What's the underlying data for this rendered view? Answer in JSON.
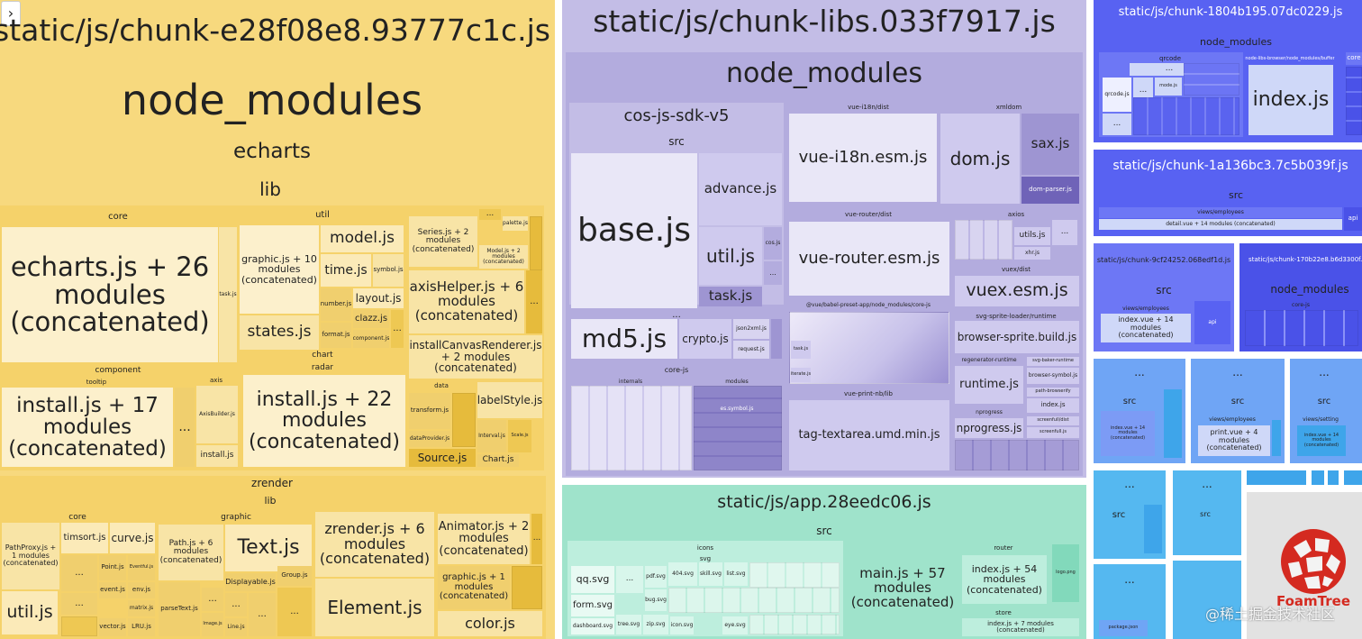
{
  "toggle": {
    "glyph": "›"
  },
  "chunk_e28": {
    "title": "static/js/chunk-e28f08e8.93777c1c.js",
    "node_modules": "node_modules",
    "echarts": "echarts",
    "lib": "lib",
    "core": "core",
    "util": "util",
    "echarts_js": "echarts.js + 26\nmodules\n(concatenated)",
    "graphic_js": "graphic.js + 10\nmodules\n(concatenated)",
    "model_js": "model.js",
    "time_js": "time.js",
    "symbol_js": "symbol.js",
    "layout_js": "layout.js",
    "number_js": "number.js",
    "clazz_js": "clazz.js",
    "states_js": "states.js",
    "format_js": "format.js",
    "component_js": "component.js",
    "task_js": "task.js",
    "series_js": "Series.js + 2\nmodules\n(concatenated)",
    "palette_js": "palette.js",
    "model2_js": "Model.js + 2\nmodules\n(concatenated)",
    "axishelper_js": "axisHelper.js + 6\nmodules\n(concatenated)",
    "installcanvas_js": "installCanvasRenderer.js\n+ 2 modules\n(concatenated)",
    "component": "component",
    "tooltip": "tooltip",
    "axis": "axis",
    "chart": "chart",
    "radar": "radar",
    "data": "data",
    "install17": "install.js + 17\nmodules\n(concatenated)",
    "axisbuilder_js": "AxisBuilder.js",
    "install_js": "install.js",
    "install22": "install.js + 22\nmodules\n(concatenated)",
    "transform_js": "transform.js",
    "dataprovider_js": "dataProvider.js",
    "labelstyle_js": "labelStyle.js",
    "interval_js": "Interval.js",
    "scale_js": "Scale.js",
    "source_js": "Source.js",
    "chart_js": "Chart.js",
    "zrender": "zrender",
    "zr_lib": "lib",
    "zr_core": "core",
    "zr_graphic": "graphic",
    "pathproxy_js": "PathProxy.js +\n1 modules\n(concatenated)",
    "timsort_js": "timsort.js",
    "curve_js": "curve.js",
    "point_js": "Point.js",
    "eventful_js": "Eventful.js",
    "event_js": "event.js",
    "env_js": "env.js",
    "matrix_js": "matrix.js",
    "vector_js": "vector.js",
    "lru_js": "LRU.js",
    "util_js": "util.js",
    "path_js": "Path.js + 6\nmodules\n(concatenated)",
    "text_js": "Text.js",
    "displayable_js": "Displayable.js",
    "group_js": "Group.js",
    "parsetext_js": "parseText.js",
    "image_js": "Image.js",
    "line_js": "Line.js",
    "zrender_js": "zrender.js + 6\nmodules\n(concatenated)",
    "element_js": "Element.js",
    "animator_js": "Animator.js + 2\nmodules\n(concatenated)",
    "graphic1_js": "graphic.js + 1\nmodules\n(concatenated)",
    "color_js": "color.js",
    "ellipsis": "..."
  },
  "chunk_libs": {
    "title": "static/js/chunk-libs.033f7917.js",
    "node_modules": "node_modules",
    "cos_sdk": "cos-js-sdk-v5",
    "src": "src",
    "base_js": "base.js",
    "advance_js": "advance.js",
    "util_js": "util.js",
    "cos_js": "cos.js",
    "task_js": "task.js",
    "md5_js": "md5.js",
    "crypto_js": "crypto.js",
    "json2xml_js": "json2xml.js",
    "request_js": "request.js",
    "core_js": "core-js",
    "internals": "internals",
    "modules": "modules",
    "es_symbol_js": "es.symbol.js",
    "vue_i18n_dist": "vue-i18n/dist",
    "vue_i18n_js": "vue-i18n.esm.js",
    "xmldom": "xmldom",
    "dom_js": "dom.js",
    "sax_js": "sax.js",
    "dom_parser_js": "dom-parser.js",
    "vue_router_dist": "vue-router/dist",
    "vue_router_js": "vue-router.esm.js",
    "axios": "axios",
    "utils_js": "utils.js",
    "xhr_js": "xhr.js",
    "vuex_dist": "vuex/dist",
    "vuex_js": "vuex.esm.js",
    "babel_core_js": "@vue/babel-preset-app/node_modules/core-js",
    "svg_sprite_runtime": "svg-sprite-loader/runtime",
    "browser_sprite_js": "browser-sprite.build.js",
    "regenerator_runtime": "regenerator-runtime",
    "svg_baker_runtime": "svg-baker-runtime",
    "runtime_js": "runtime.js",
    "browser_symbol_js": "browser-symbol.js",
    "path_browserify": "path-browserify",
    "index_js": "index.js",
    "nprogress_dir": "nprogress",
    "nprogress_js": "nprogress.js",
    "screenfull_dist": "screenfull/dist",
    "screenfull_js": "screenfull.js",
    "vue_print_lib": "vue-print-nb/lib",
    "tag_textarea_js": "tag-textarea.umd.min.js",
    "task_js2": "task.js",
    "iterate_js": "iterate.js",
    "ellipsis": "..."
  },
  "app": {
    "title": "static/js/app.28eedc06.js",
    "src": "src",
    "icons": "icons",
    "svg": "svg",
    "qq_svg": "qq.svg",
    "form_svg": "form.svg",
    "dashboard_svg": "dashboard.svg",
    "pdf_svg": "pdf.svg",
    "bug_svg": "bug.svg",
    "tree_svg": "tree.svg",
    "zip_svg": "zip.svg",
    "svg404": "404.svg",
    "skill_svg": "skill.svg",
    "list_svg": "list.svg",
    "icon_svg": "icon.svg",
    "eye_svg": "eye.svg",
    "main_js": "main.js + 57\nmodules\n(concatenated)",
    "router": "router",
    "router_index": "index.js + 54\nmodules\n(concatenated)",
    "store": "store",
    "store_index": "index.js + 7 modules\n(concatenated)",
    "logo_png": "logo.png",
    "ellipsis": "..."
  },
  "chunk_1804": {
    "title": "static/js/chunk-1804b195.07dc0229.js",
    "node_modules": "node_modules",
    "qrcode": "qrcode",
    "qrcode_js": "qrcode.js",
    "mode_js": "mode.js",
    "babel_runtime": "node-libs-browser/node_modules/buffer",
    "index_js": "index.js",
    "core": "core",
    "ellipsis": "..."
  },
  "chunk_1a13": {
    "title": "static/js/chunk-1a136bc3.7c5b039f.js",
    "src": "src",
    "views_employees": "views/employees",
    "detail_vue": "detail.vue + 14 modules (concatenated)",
    "api": "api"
  },
  "chunk_9cf2": {
    "title": "static/js/chunk-9cf24252.068edf1d.js",
    "src": "src",
    "views_employees": "views/employees",
    "index_vue": "index.vue + 14\nmodules\n(concatenated)",
    "api": "api"
  },
  "chunk_170b": {
    "title": "static/js/chunk-170b22e8.b6d3300f.js",
    "node_modules": "node_modules",
    "core_js": "core-js"
  },
  "small_chunks": {
    "ellipsis": "...",
    "src": "src",
    "views_employees": "views/employees",
    "print_vue": "print.vue + 4\nmodules\n(concatenated)",
    "views_setting": "views/setting",
    "index_vue_mod": "index.vue + 14\nmodules\n(concatenated)",
    "package_json": "package.json"
  },
  "logo": {
    "text": "FoamTree"
  },
  "watermark": {
    "text": "@稀土掘金技术社区"
  }
}
